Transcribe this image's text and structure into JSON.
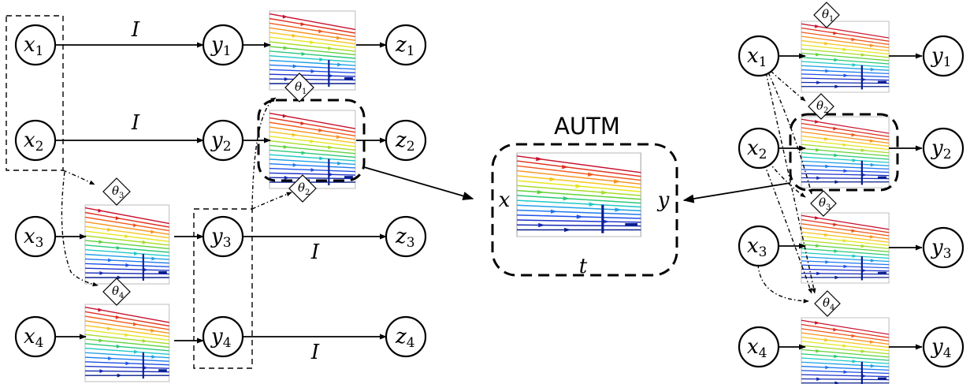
{
  "title": "AUTM",
  "identity_label": "I",
  "nodes": {
    "x": [
      "x",
      "1",
      "2",
      "3",
      "4"
    ],
    "y": [
      "y",
      "1",
      "2",
      "3",
      "4"
    ],
    "z": [
      "z",
      "1",
      "2",
      "3",
      "4"
    ]
  },
  "center": {
    "input": "x",
    "output": "y",
    "axis": "t"
  },
  "thetas": [
    "θ",
    "1",
    "2",
    "3",
    "4"
  ]
}
